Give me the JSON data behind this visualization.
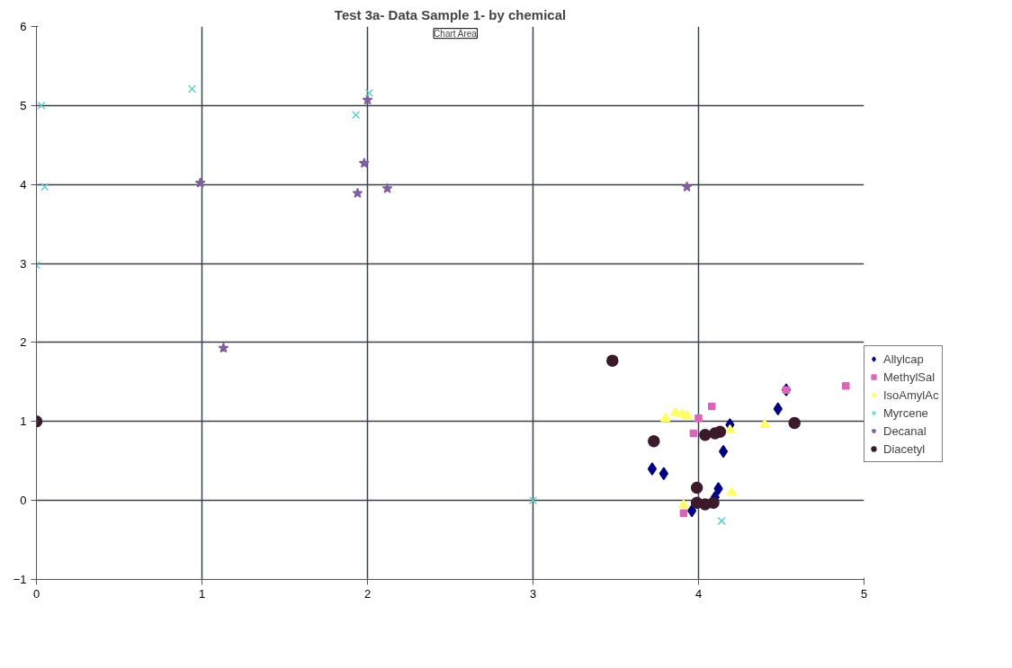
{
  "chart_data": {
    "type": "scatter",
    "title": "Test 3a- Data Sample 1- by chemical",
    "annotations": [
      "Chart Area"
    ],
    "xlim": [
      0,
      5
    ],
    "ylim": [
      -1,
      6
    ],
    "xticks": [
      0,
      1,
      2,
      3,
      4,
      5
    ],
    "yticks": [
      -1,
      0,
      1,
      2,
      3,
      4,
      5,
      6
    ],
    "grid": true,
    "legend": "right",
    "series": [
      {
        "name": "Allylcap",
        "color": "#000080",
        "marker": "diamond",
        "x": [
          4.53,
          4.48,
          4.19,
          4.15,
          3.72,
          3.79,
          4.12,
          4.1,
          3.96
        ],
        "values": [
          1.4,
          1.16,
          0.96,
          0.62,
          0.4,
          0.34,
          0.15,
          0.04,
          -0.13
        ]
      },
      {
        "name": "MethylSal",
        "color": "#d966b8",
        "marker": "square",
        "x": [
          4.89,
          4.53,
          4.08,
          4.0,
          3.97,
          3.91
        ],
        "values": [
          1.45,
          1.4,
          1.19,
          1.04,
          0.85,
          -0.16
        ]
      },
      {
        "name": "IsoAmylAc",
        "color": "#ffff66",
        "marker": "triangle",
        "x": [
          3.8,
          3.86,
          3.9,
          3.93,
          4.19,
          4.4,
          4.2,
          3.91
        ],
        "values": [
          1.04,
          1.11,
          1.09,
          1.07,
          0.89,
          0.96,
          0.1,
          -0.06
        ]
      },
      {
        "name": "Myrcene",
        "color": "#66cccc",
        "marker": "cross",
        "x": [
          0.03,
          0.05,
          0.0,
          0.94,
          1.93,
          2.01,
          3.0,
          4.14
        ],
        "values": [
          5.0,
          3.97,
          2.98,
          5.21,
          4.88,
          5.16,
          0.0,
          -0.26
        ]
      },
      {
        "name": "Decanal",
        "color": "#7f5f9f",
        "marker": "star",
        "x": [
          0.99,
          1.98,
          1.94,
          2.12,
          2.0,
          1.13,
          3.93
        ],
        "values": [
          4.02,
          4.27,
          3.89,
          3.95,
          5.07,
          1.93,
          3.97
        ]
      },
      {
        "name": "Diacetyl",
        "color": "#3b1a2a",
        "marker": "circle",
        "x": [
          0.0,
          3.48,
          3.73,
          4.58,
          4.04,
          4.13,
          4.1,
          3.99,
          3.99,
          4.04,
          4.09
        ],
        "values": [
          1.0,
          1.77,
          0.75,
          0.98,
          0.83,
          0.87,
          0.85,
          0.16,
          -0.03,
          -0.05,
          -0.03
        ]
      }
    ]
  }
}
